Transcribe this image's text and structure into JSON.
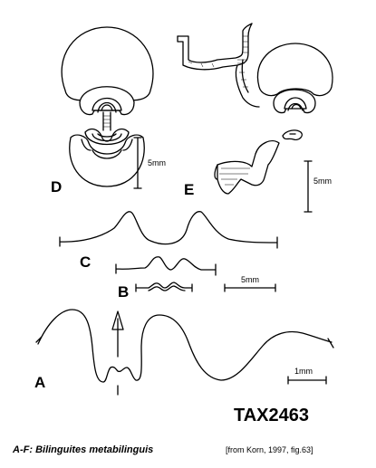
{
  "panels": {
    "a": "A",
    "b": "B",
    "c": "C",
    "d": "D",
    "e": "E"
  },
  "scale_bars": {
    "d": "5mm",
    "e": "5mm",
    "b": "5mm",
    "a": "1mm"
  },
  "catalog_number": "TAX2463",
  "caption": {
    "range": "A-F:",
    "taxon": "Bilinguites metabilinguis"
  },
  "source": "[from Korn, 1997, fig.63]"
}
